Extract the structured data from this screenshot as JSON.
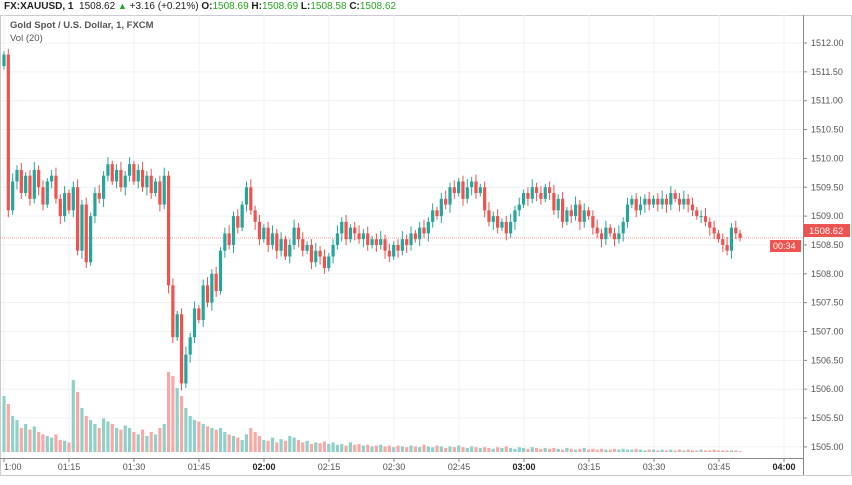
{
  "header": {
    "symbol": "FX:XAUUSD, 1",
    "last": "1508.62",
    "change": "+3.16 (+0.21%)",
    "o_label": "O:",
    "o": "1508.69",
    "h_label": "H:",
    "h": "1508.69",
    "l_label": "L:",
    "l": "1508.58",
    "c_label": "C:",
    "c": "1508.62"
  },
  "legend": {
    "title": "Gold Spot / U.S. Dollar, 1, FXCM",
    "volume": "Vol (20)"
  },
  "colors": {
    "up": "#26a69a",
    "down": "#ef5350",
    "vol_up": "#8fd1c8",
    "vol_down": "#f7a9a7",
    "grid": "#eef1f4",
    "last_line": "#f4a09f"
  },
  "chart_data": {
    "type": "candlestick",
    "interval": "1 minute",
    "grid": true,
    "ylim": [
      1504.9,
      1512.5
    ],
    "y_ticks": [
      "1512.00",
      "1511.50",
      "1511.00",
      "1510.50",
      "1510.00",
      "1509.50",
      "1509.00",
      "1508.50",
      "1508.00",
      "1507.50",
      "1507.00",
      "1506.50",
      "1506.00",
      "1505.50",
      "1505.00"
    ],
    "x_ticks": [
      "1:00",
      "01:15",
      "01:30",
      "01:45",
      "02:00",
      "02:15",
      "02:30",
      "02:45",
      "03:00",
      "03:15",
      "03:30",
      "03:45",
      "04:00"
    ],
    "last_price_label": "1508.62",
    "countdown_label": "00:34",
    "first_open": 1511.6,
    "close": [
      1511.8,
      1509.1,
      1509.6,
      1509.8,
      1509.4,
      1509.7,
      1509.3,
      1509.8,
      1509.5,
      1509.2,
      1509.6,
      1509.7,
      1509.3,
      1509.0,
      1509.4,
      1509.1,
      1509.5,
      1508.4,
      1509.2,
      1508.2,
      1509.0,
      1509.4,
      1509.3,
      1509.7,
      1509.9,
      1509.6,
      1509.8,
      1509.5,
      1509.7,
      1509.9,
      1509.6,
      1509.8,
      1509.5,
      1509.7,
      1509.4,
      1509.6,
      1509.2,
      1509.7,
      1507.8,
      1506.9,
      1507.3,
      1506.1,
      1506.6,
      1506.9,
      1507.4,
      1507.2,
      1507.8,
      1507.5,
      1508.0,
      1507.7,
      1508.4,
      1508.7,
      1508.5,
      1509.0,
      1508.8,
      1509.2,
      1509.5,
      1509.1,
      1508.9,
      1508.6,
      1508.8,
      1508.5,
      1508.7,
      1508.4,
      1508.6,
      1508.3,
      1508.5,
      1508.8,
      1508.6,
      1508.4,
      1508.5,
      1508.2,
      1508.4,
      1508.3,
      1508.1,
      1508.3,
      1508.5,
      1508.7,
      1508.9,
      1508.6,
      1508.8,
      1508.7,
      1508.6,
      1508.7,
      1508.5,
      1508.6,
      1508.5,
      1508.6,
      1508.4,
      1508.3,
      1508.5,
      1508.4,
      1508.6,
      1508.5,
      1508.7,
      1508.6,
      1508.8,
      1508.7,
      1508.9,
      1509.1,
      1509.0,
      1509.3,
      1509.2,
      1509.5,
      1509.4,
      1509.6,
      1509.3,
      1509.5,
      1509.6,
      1509.4,
      1509.5,
      1509.1,
      1508.9,
      1509.0,
      1508.8,
      1508.9,
      1508.7,
      1508.9,
      1509.1,
      1509.2,
      1509.4,
      1509.3,
      1509.5,
      1509.4,
      1509.3,
      1509.5,
      1509.4,
      1509.1,
      1509.3,
      1508.9,
      1509.1,
      1509.0,
      1509.2,
      1508.9,
      1509.1,
      1509.0,
      1508.8,
      1508.7,
      1508.6,
      1508.8,
      1508.7,
      1508.6,
      1508.7,
      1508.9,
      1509.2,
      1509.3,
      1509.1,
      1509.2,
      1509.3,
      1509.2,
      1509.3,
      1509.2,
      1509.3,
      1509.2,
      1509.4,
      1509.3,
      1509.2,
      1509.3,
      1509.2,
      1509.1,
      1509.0,
      1509.0,
      1508.9,
      1508.8,
      1508.7,
      1508.6,
      1508.5,
      1508.4,
      1508.8,
      1508.7,
      1508.62
    ],
    "volume": [
      70,
      60,
      45,
      40,
      30,
      35,
      28,
      32,
      25,
      22,
      20,
      18,
      22,
      15,
      14,
      12,
      90,
      75,
      55,
      45,
      40,
      35,
      30,
      42,
      38,
      35,
      30,
      28,
      33,
      30,
      25,
      22,
      28,
      20,
      25,
      22,
      30,
      35,
      100,
      95,
      80,
      70,
      55,
      45,
      40,
      38,
      35,
      32,
      30,
      28,
      30,
      25,
      22,
      20,
      18,
      15,
      22,
      30,
      25,
      20,
      15,
      14,
      18,
      12,
      16,
      14,
      20,
      18,
      15,
      12,
      14,
      10,
      12,
      11,
      13,
      10,
      12,
      9,
      10,
      8,
      12,
      9,
      10,
      8,
      9,
      7,
      8,
      9,
      7,
      8,
      6,
      8,
      7,
      6,
      8,
      7,
      6,
      9,
      7,
      6,
      8,
      7,
      5,
      7,
      6,
      8,
      6,
      5,
      7,
      6,
      5,
      6,
      5,
      4,
      6,
      5,
      7,
      5,
      4,
      6,
      5,
      4,
      6,
      5,
      4,
      5,
      4,
      5,
      4,
      3,
      5,
      4,
      3,
      4,
      5,
      3,
      4,
      3,
      4,
      3,
      3,
      4,
      3,
      4,
      3,
      3,
      4,
      3,
      2,
      3,
      3,
      2,
      3,
      2,
      3,
      2,
      3,
      2,
      3,
      2,
      2,
      3,
      2,
      2,
      3,
      2,
      2,
      2,
      2,
      2,
      1
    ]
  }
}
